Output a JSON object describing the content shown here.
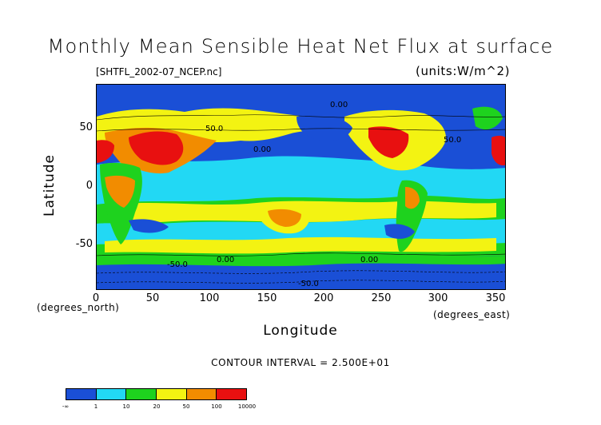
{
  "title": "Monthly Mean Sensible Heat Net Flux at surface",
  "filename": "[SHTFL_2002-07_NCEP.nc]",
  "units": "(units:W/m^2)",
  "xlabel": "Longitude",
  "ylabel": "Latitude",
  "x_unit_left": "(degrees_north)",
  "x_unit_right": "(degrees_east)",
  "contour_interval": "CONTOUR INTERVAL = 2.500E+01",
  "axes": {
    "x_ticks": [
      "0",
      "50",
      "100",
      "150",
      "200",
      "250",
      "300",
      "350"
    ],
    "y_ticks": [
      "50",
      "0",
      "-50"
    ]
  },
  "contour_labels": [
    "0.00",
    "50.0",
    "0.00",
    "-50.0",
    "0.00",
    "50.0",
    "0.00",
    "-50.0"
  ],
  "legend": {
    "tick_labels": [
      "-∞",
      "1",
      "10",
      "20",
      "50",
      "100",
      "10000"
    ],
    "colors": [
      "#1a4fd6",
      "#22d8f4",
      "#1ed21e",
      "#f3f312",
      "#f28c00",
      "#e81010"
    ]
  }
}
